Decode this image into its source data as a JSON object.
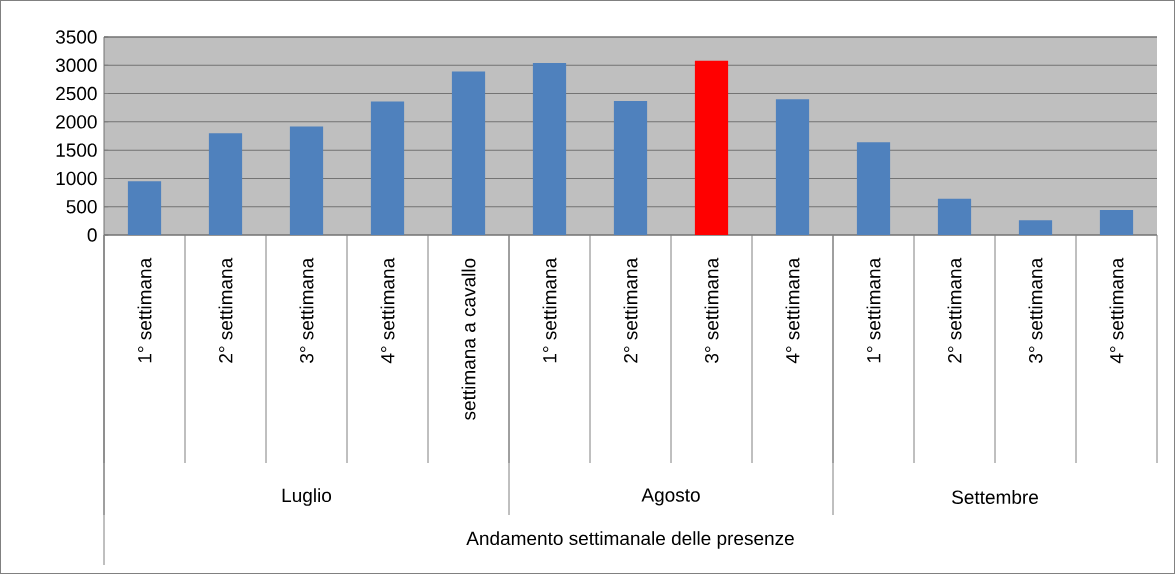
{
  "chart_data": {
    "type": "bar",
    "categories": [
      "1° settimana",
      "2° settimana",
      "3° settimana",
      "4° settimana",
      "settimana a cavallo",
      "1° settimana",
      "2° settimana",
      "3° settimana",
      "4° settimana",
      "1° settimana",
      "2° settimana",
      "3° settimana",
      "4° settimana"
    ],
    "values": [
      950,
      1800,
      1920,
      2360,
      2890,
      3040,
      2370,
      3080,
      2400,
      1640,
      640,
      260,
      440
    ],
    "colors": [
      "#4f81bd",
      "#4f81bd",
      "#4f81bd",
      "#4f81bd",
      "#4f81bd",
      "#4f81bd",
      "#4f81bd",
      "#ff0000",
      "#4f81bd",
      "#4f81bd",
      "#4f81bd",
      "#4f81bd",
      "#4f81bd"
    ],
    "annotations": [
      "Luglio",
      "Agosto",
      "Settembre",
      "Andamento settimanale delle presenze"
    ],
    "ylim": [
      0,
      3500
    ],
    "yticks": [
      0,
      500,
      1000,
      1500,
      2000,
      2500,
      3000,
      3500
    ],
    "grid": "y"
  }
}
